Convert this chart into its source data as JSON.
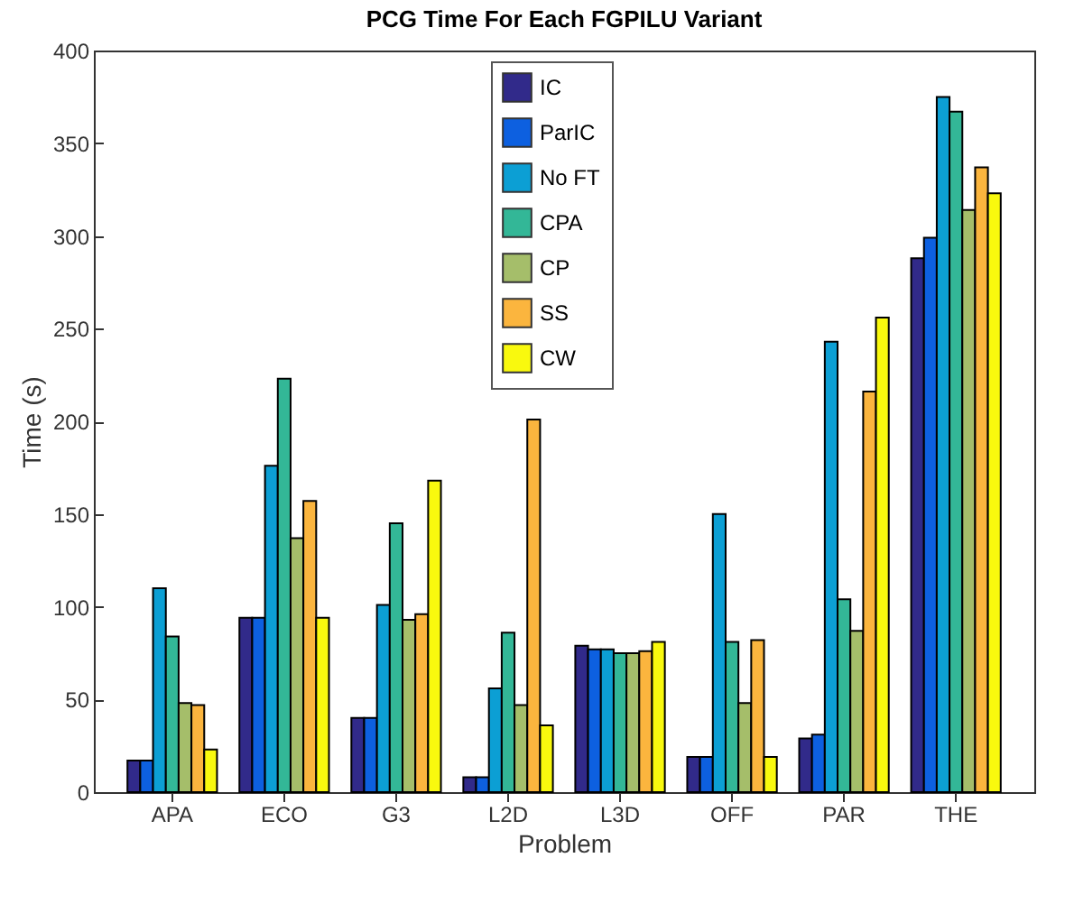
{
  "chart_data": {
    "type": "bar",
    "title": "PCG Time For Each FGPILU Variant",
    "xlabel": "Problem",
    "ylabel": "Time (s)",
    "categories": [
      "APA",
      "ECO",
      "G3",
      "L2D",
      "L3D",
      "OFF",
      "PAR",
      "THE"
    ],
    "series": [
      {
        "name": "IC",
        "color": "#312a8a",
        "values": [
          17,
          94,
          40,
          8,
          79,
          19,
          29,
          288
        ]
      },
      {
        "name": "ParIC",
        "color": "#0d60e0",
        "values": [
          17,
          94,
          40,
          8,
          77,
          19,
          31,
          299
        ]
      },
      {
        "name": "No FT",
        "color": "#0c9fd4",
        "values": [
          110,
          176,
          101,
          56,
          77,
          150,
          243,
          375
        ]
      },
      {
        "name": "CPA",
        "color": "#33b797",
        "values": [
          84,
          223,
          145,
          86,
          75,
          81,
          104,
          367
        ]
      },
      {
        "name": "CP",
        "color": "#a5be6a",
        "values": [
          48,
          137,
          93,
          47,
          75,
          48,
          87,
          314
        ]
      },
      {
        "name": "SS",
        "color": "#fbb53e",
        "values": [
          47,
          157,
          96,
          201,
          76,
          82,
          216,
          337
        ]
      },
      {
        "name": "CW",
        "color": "#f9f90e",
        "values": [
          23,
          94,
          168,
          36,
          81,
          19,
          256,
          323
        ]
      }
    ],
    "ylim": [
      0,
      400
    ],
    "yticks": [
      0,
      50,
      100,
      150,
      200,
      250,
      300,
      350,
      400
    ],
    "grid": false,
    "legend": "top"
  }
}
